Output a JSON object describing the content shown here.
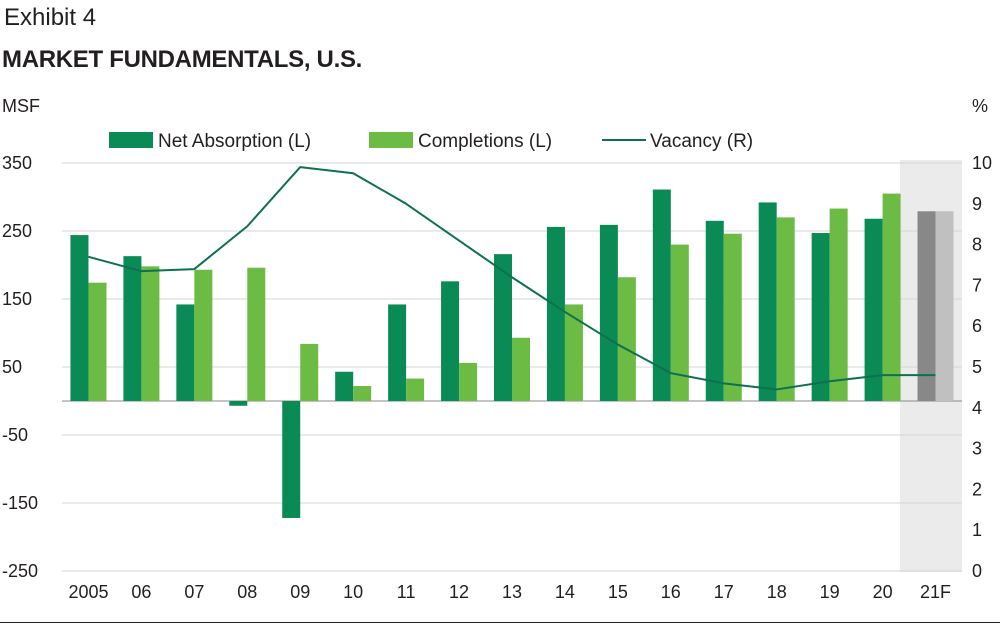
{
  "header": {
    "exhibit": "Exhibit 4",
    "title": "MARKET FUNDAMENTALS, U.S."
  },
  "chart_data": {
    "type": "bar",
    "title": "MARKET FUNDAMENTALS, U.S.",
    "ylabel_left": "MSF",
    "ylabel_right": "%",
    "categories": [
      "2005",
      "06",
      "07",
      "08",
      "09",
      "10",
      "11",
      "12",
      "13",
      "14",
      "15",
      "16",
      "17",
      "18",
      "19",
      "20",
      "21F"
    ],
    "forecast_category": "21F",
    "ylim_left": [
      -250,
      350
    ],
    "yticks_left": [
      350,
      250,
      150,
      50,
      -50,
      -150,
      -250
    ],
    "ylim_right": [
      0,
      10
    ],
    "yticks_right": [
      10,
      9,
      8,
      7,
      6,
      5,
      4,
      3,
      2,
      1,
      0
    ],
    "series": [
      {
        "name": "Net Absorption (L)",
        "type": "bar",
        "axis": "left",
        "color": "#0a8a55",
        "forecast_color": "#888888",
        "values": [
          244,
          213,
          142,
          -7,
          -172,
          43,
          142,
          176,
          216,
          256,
          259,
          311,
          265,
          292,
          247,
          268,
          279
        ]
      },
      {
        "name": "Completions (L)",
        "type": "bar",
        "axis": "left",
        "color": "#6cbb44",
        "forecast_color": "#c0c0c0",
        "values": [
          174,
          198,
          193,
          196,
          84,
          22,
          33,
          56,
          93,
          142,
          182,
          230,
          246,
          270,
          283,
          305,
          279
        ]
      },
      {
        "name": "Vacancy (R)",
        "type": "line",
        "axis": "right",
        "color": "#0e7050",
        "values": [
          7.7,
          7.35,
          7.4,
          8.45,
          9.9,
          9.75,
          9.0,
          8.1,
          7.2,
          6.35,
          5.55,
          4.85,
          4.6,
          4.45,
          4.65,
          4.8,
          4.8
        ]
      }
    ],
    "legend": {
      "position": "top",
      "items": [
        "Net Absorption (L)",
        "Completions (L)",
        "Vacancy (R)"
      ]
    },
    "grid": true
  }
}
